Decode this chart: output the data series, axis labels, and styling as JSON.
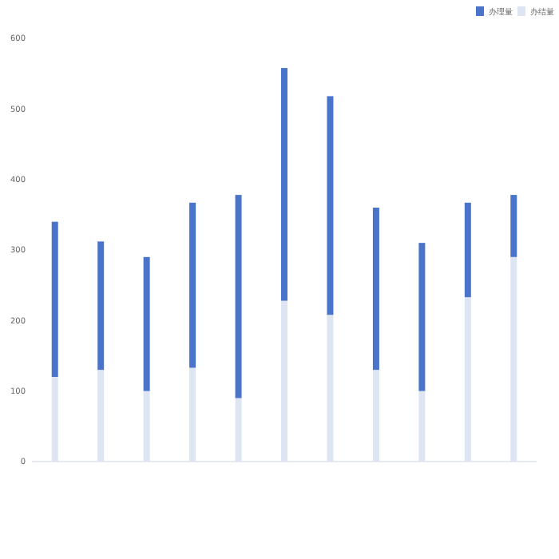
{
  "chart_data": {
    "type": "bar",
    "stacked": true,
    "categories": [
      null,
      null,
      null,
      null,
      null,
      null,
      null,
      null,
      null,
      null,
      null
    ],
    "series": [
      {
        "name": "办结量",
        "color": "#dde4f2",
        "values": [
          120,
          130,
          100,
          133,
          90,
          228,
          208,
          130,
          100,
          233,
          290
        ]
      },
      {
        "name": "办理量",
        "color": "#4a74c9",
        "values": [
          220,
          182,
          190,
          234,
          288,
          330,
          310,
          230,
          210,
          134,
          88
        ]
      }
    ],
    "ylim": [
      0,
      600
    ],
    "yticks": [
      0,
      100,
      200,
      300,
      400,
      500,
      600
    ],
    "legend": "top right"
  }
}
